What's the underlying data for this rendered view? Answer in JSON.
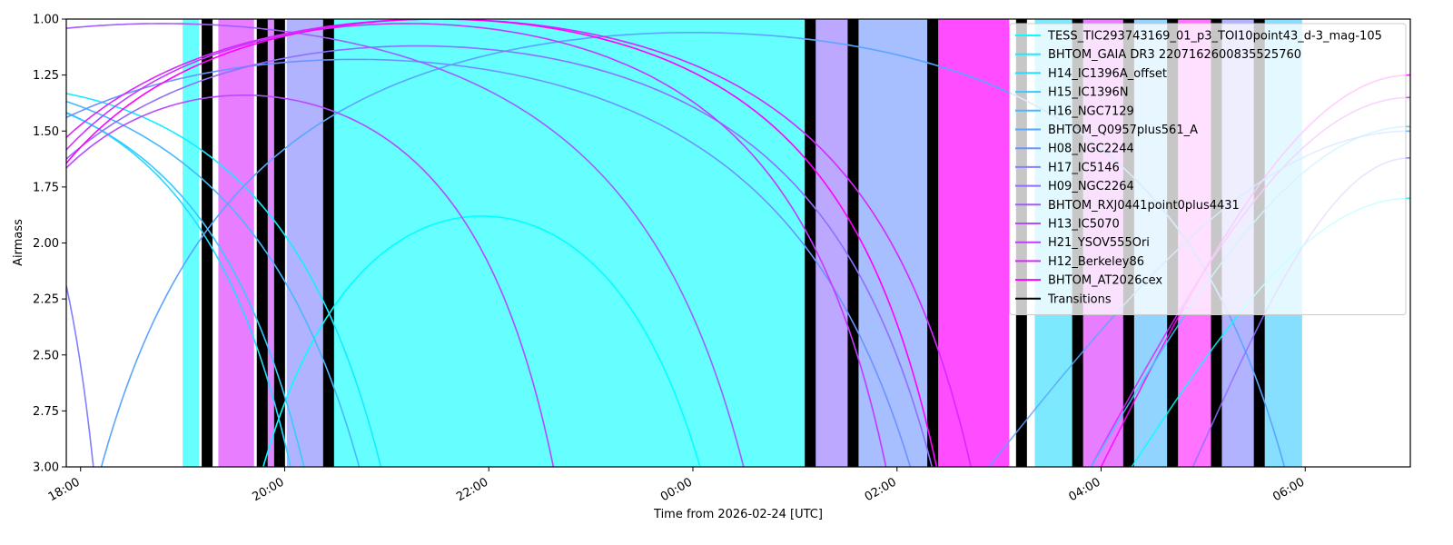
{
  "chart_data": {
    "type": "line",
    "xlabel": "Time from 2026-02-24 [UTC]",
    "ylabel": "Airmass",
    "ylim": [
      3.0,
      1.0
    ],
    "y_ticks": [
      "1.00",
      "1.25",
      "1.50",
      "1.75",
      "2.00",
      "2.25",
      "2.50",
      "2.75",
      "3.00"
    ],
    "xlim_hours": [
      17.86,
      31.03
    ],
    "x_ticks": [
      {
        "h": 18,
        "label": "18:00"
      },
      {
        "h": 20,
        "label": "20:00"
      },
      {
        "h": 22,
        "label": "22:00"
      },
      {
        "h": 24,
        "label": "00:00"
      },
      {
        "h": 26,
        "label": "02:00"
      },
      {
        "h": 28,
        "label": "04:00"
      },
      {
        "h": 30,
        "label": "06:00"
      }
    ],
    "legend_position": "top-right",
    "series": [
      {
        "name": "TESS_TIC293743169_01_p3_TOI10point43_d-3_mag-105",
        "color": "#00ffff",
        "peak_h": 21.93,
        "min_airmass": 1.88,
        "half_width": 3.5
      },
      {
        "name": "BHTOM_GAIA DR3 2207162600835525760",
        "color": "#12edff",
        "peak_h": 17.1,
        "min_airmass": 1.3,
        "half_width": 5.0
      },
      {
        "name": "H14_IC1396A_offset",
        "color": "#24dbff",
        "peak_h": 16.6,
        "min_airmass": 1.3,
        "half_width": 4.5
      },
      {
        "name": "H15_IC1396N",
        "color": "#36c9ff",
        "peak_h": 16.5,
        "min_airmass": 1.3,
        "half_width": 4.8
      },
      {
        "name": "H16_NGC7129",
        "color": "#48b7ff",
        "peak_h": 16.2,
        "min_airmass": 1.25,
        "half_width": 5.8
      },
      {
        "name": "BHTOM_Q0957plus561_A",
        "color": "#5aa5ff",
        "peak_h": 24.0,
        "min_airmass": 1.06,
        "half_width": 7.0
      },
      {
        "name": "H08_NGC2244",
        "color": "#6c93ff",
        "peak_h": 20.7,
        "min_airmass": 1.18,
        "half_width": 6.8
      },
      {
        "name": "H17_IC5146",
        "color": "#7e81ff",
        "peak_h": 16.3,
        "min_airmass": 1.2,
        "half_width": 2.3
      },
      {
        "name": "H09_NGC2264",
        "color": "#906fff",
        "peak_h": 21.3,
        "min_airmass": 1.12,
        "half_width": 6.2
      },
      {
        "name": "BHTOM_RXJ0441point0plus4431",
        "color": "#a25dff",
        "peak_h": 18.8,
        "min_airmass": 1.02,
        "half_width": 6.8
      },
      {
        "name": "H13_IC5070",
        "color": "#b44bff",
        "peak_h": 19.6,
        "min_airmass": 1.34,
        "half_width": 4.0
      },
      {
        "name": "H21_YSOV555Ori",
        "color": "#c639ff",
        "peak_h": 21.2,
        "min_airmass": 1.02,
        "half_width": 5.6
      },
      {
        "name": "H12_Berkeley86",
        "color": "#d827ff",
        "peak_h": 21.5,
        "min_airmass": 1.0,
        "half_width": 6.2
      },
      {
        "name": "BHTOM_AT2026cex",
        "color": "#ff00ff",
        "peak_h": 21.5,
        "min_airmass": 1.0,
        "half_width": 5.8
      },
      {
        "name": "Transitions",
        "color": "#000000"
      }
    ],
    "late_curves": [
      {
        "color": "#ff00ff",
        "start_h": 28.0,
        "end_h": 31.03,
        "start_airmass": 3.0,
        "end_airmass": 1.25
      },
      {
        "color": "#d827ff",
        "start_h": 27.9,
        "end_h": 31.03,
        "start_airmass": 3.0,
        "end_airmass": 1.35
      },
      {
        "color": "#906fff",
        "start_h": 28.9,
        "end_h": 31.03,
        "start_airmass": 3.0,
        "end_airmass": 1.62
      },
      {
        "color": "#00ffff",
        "start_h": 28.3,
        "end_h": 31.03,
        "start_airmass": 3.0,
        "end_airmass": 1.8
      },
      {
        "color": "#36c9ff",
        "start_h": 27.9,
        "end_h": 31.03,
        "start_airmass": 3.0,
        "end_airmass": 1.48
      },
      {
        "color": "#5aa5ff",
        "start_h": 26.9,
        "end_h": 31.03,
        "start_airmass": 3.0,
        "end_airmass": 1.5
      }
    ],
    "shaded_windows": [
      {
        "start": 19.0,
        "end": 19.16,
        "color": "#00ffff",
        "alpha": 0.6
      },
      {
        "start": 19.35,
        "end": 19.7,
        "color": "#d827ff",
        "alpha": 0.6
      },
      {
        "start": 19.82,
        "end": 19.9,
        "color": "#c639ff",
        "alpha": 0.6
      },
      {
        "start": 20.02,
        "end": 20.38,
        "color": "#7e81ff",
        "alpha": 0.6
      },
      {
        "start": 20.48,
        "end": 25.1,
        "color": "#00ffff",
        "alpha": 0.6
      },
      {
        "start": 25.2,
        "end": 25.52,
        "color": "#906fff",
        "alpha": 0.6
      },
      {
        "start": 25.62,
        "end": 26.3,
        "color": "#6c93ff",
        "alpha": 0.6
      },
      {
        "start": 26.4,
        "end": 27.1,
        "color": "#ff00ff",
        "alpha": 0.7
      },
      {
        "start": 27.35,
        "end": 27.72,
        "color": "#24dbff",
        "alpha": 0.6
      },
      {
        "start": 27.82,
        "end": 28.22,
        "color": "#d827ff",
        "alpha": 0.6
      },
      {
        "start": 28.32,
        "end": 28.65,
        "color": "#48b7ff",
        "alpha": 0.6
      },
      {
        "start": 28.75,
        "end": 29.08,
        "color": "#ff00ff",
        "alpha": 0.55
      },
      {
        "start": 29.18,
        "end": 29.5,
        "color": "#7e81ff",
        "alpha": 0.6
      },
      {
        "start": 29.6,
        "end": 29.97,
        "color": "#36c9ff",
        "alpha": 0.6
      }
    ],
    "transitions": [
      19.24,
      19.78,
      19.95,
      20.43,
      25.15,
      25.57,
      26.35,
      27.22,
      27.77,
      28.27,
      28.7,
      29.13,
      29.55
    ]
  }
}
